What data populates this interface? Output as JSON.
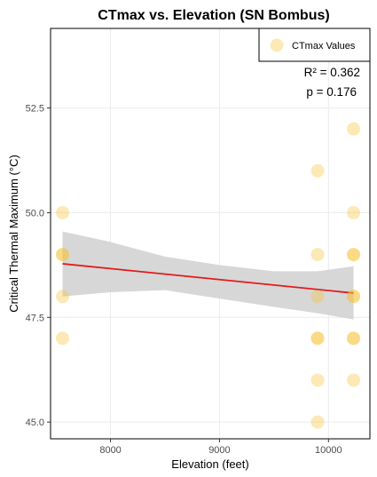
{
  "chart_data": {
    "type": "scatter",
    "title": "CTmax vs. Elevation (SN Bombus)",
    "xlabel": "Elevation (feet)",
    "ylabel": "Critical Thermal Maximum (°C)",
    "xlim": [
      7450,
      10380
    ],
    "ylim": [
      44.6,
      54.4
    ],
    "x_ticks": [
      8000,
      9000,
      10000
    ],
    "x_tick_labels": [
      "8000",
      "9000",
      "10000"
    ],
    "y_ticks": [
      45.0,
      47.5,
      50.0,
      52.5
    ],
    "y_tick_labels": [
      "45.0",
      "47.5",
      "50.0",
      "52.5"
    ],
    "grid": true,
    "legend": {
      "position": "top-right",
      "entries": [
        "CTmax Values"
      ]
    },
    "annotations": [
      "R² = 0.362",
      "p = 0.176"
    ],
    "points": [
      {
        "x": 7560,
        "y": 50.0
      },
      {
        "x": 7560,
        "y": 49.0
      },
      {
        "x": 7560,
        "y": 49.0
      },
      {
        "x": 7560,
        "y": 48.0
      },
      {
        "x": 7560,
        "y": 47.0
      },
      {
        "x": 9900,
        "y": 51.0
      },
      {
        "x": 9900,
        "y": 49.0
      },
      {
        "x": 9900,
        "y": 48.0
      },
      {
        "x": 9900,
        "y": 47.0
      },
      {
        "x": 9900,
        "y": 47.0
      },
      {
        "x": 9900,
        "y": 46.0
      },
      {
        "x": 9900,
        "y": 45.0
      },
      {
        "x": 10230,
        "y": 52.0
      },
      {
        "x": 10230,
        "y": 50.0
      },
      {
        "x": 10230,
        "y": 49.0
      },
      {
        "x": 10230,
        "y": 49.0
      },
      {
        "x": 10230,
        "y": 48.0
      },
      {
        "x": 10230,
        "y": 48.0
      },
      {
        "x": 10230,
        "y": 47.0
      },
      {
        "x": 10230,
        "y": 47.0
      },
      {
        "x": 10230,
        "y": 46.0
      }
    ],
    "fit_line": {
      "x": [
        7560,
        10230
      ],
      "y": [
        48.78,
        48.08
      ]
    },
    "confidence_band": {
      "x": [
        7560,
        8000,
        8500,
        9000,
        9500,
        9900,
        10230
      ],
      "lower": [
        48.0,
        48.1,
        48.15,
        47.95,
        47.75,
        47.6,
        47.45
      ],
      "upper": [
        49.55,
        49.3,
        48.95,
        48.75,
        48.6,
        48.6,
        48.72
      ]
    },
    "colors": {
      "point": "#f5c02a",
      "fit_line": "#e31a1c",
      "band": "#d3d3d3"
    }
  }
}
